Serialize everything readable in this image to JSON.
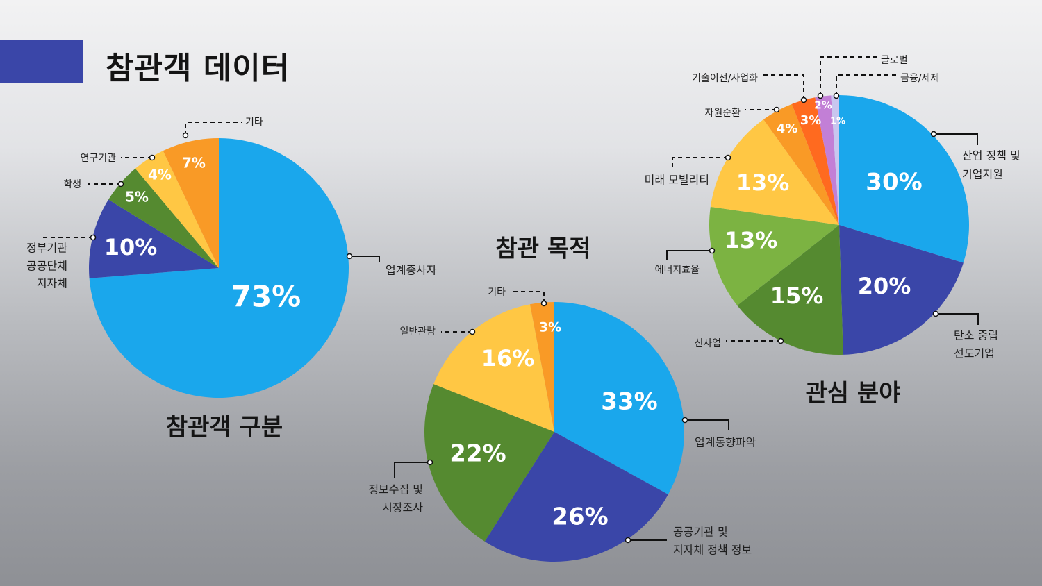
{
  "page": {
    "title": "참관객 데이터",
    "accent_color": "#3A46A8"
  },
  "chart_data": [
    {
      "type": "pie",
      "title": "참관객 구분",
      "slices": [
        {
          "label": "업계종사자",
          "value": 73,
          "display": "73%",
          "color": "#1AA7EC"
        },
        {
          "label": "정부기관\n공공단체\n지자체",
          "value": 10,
          "display": "10%",
          "color": "#3A46A8"
        },
        {
          "label": "학생",
          "value": 5,
          "display": "5%",
          "color": "#558A30"
        },
        {
          "label": "연구기관",
          "value": 4,
          "display": "4%",
          "color": "#FFC744"
        },
        {
          "label": "기타",
          "value": 7,
          "display": "7%",
          "color": "#F99A26"
        }
      ]
    },
    {
      "type": "pie",
      "title": "참관 목적",
      "slices": [
        {
          "label": "업계동향파악",
          "value": 33,
          "display": "33%",
          "color": "#1AA7EC"
        },
        {
          "label": "공공기관 및\n지자체 정책 정보",
          "value": 26,
          "display": "26%",
          "color": "#3A46A8"
        },
        {
          "label": "정보수집 및\n시장조사",
          "value": 22,
          "display": "22%",
          "color": "#558A30"
        },
        {
          "label": "일반관람",
          "value": 16,
          "display": "16%",
          "color": "#FFC744"
        },
        {
          "label": "기타",
          "value": 3,
          "display": "3%",
          "color": "#F99A26"
        }
      ]
    },
    {
      "type": "pie",
      "title": "관심 분야",
      "slices": [
        {
          "label": "산업 정책 및\n기업지원",
          "value": 30,
          "display": "30%",
          "color": "#1AA7EC"
        },
        {
          "label": "탄소 중립\n선도기업",
          "value": 20,
          "display": "20%",
          "color": "#3A46A8"
        },
        {
          "label": "신사업",
          "value": 15,
          "display": "15%",
          "color": "#558A30"
        },
        {
          "label": "에너지효율",
          "value": 13,
          "display": "13%",
          "color": "#7CB342"
        },
        {
          "label": "미래 모빌리티",
          "value": 13,
          "display": "13%",
          "color": "#FFC744"
        },
        {
          "label": "자원순환",
          "value": 4,
          "display": "4%",
          "color": "#F99A26"
        },
        {
          "label": "기술이전/사업화",
          "value": 3,
          "display": "3%",
          "color": "#FF6A1F"
        },
        {
          "label": "글로벌",
          "value": 2,
          "display": "2%",
          "color": "#C27FD6"
        },
        {
          "label": "금융/세제",
          "value": 1,
          "display": "1%",
          "color": "#C8C6EF"
        }
      ]
    }
  ]
}
